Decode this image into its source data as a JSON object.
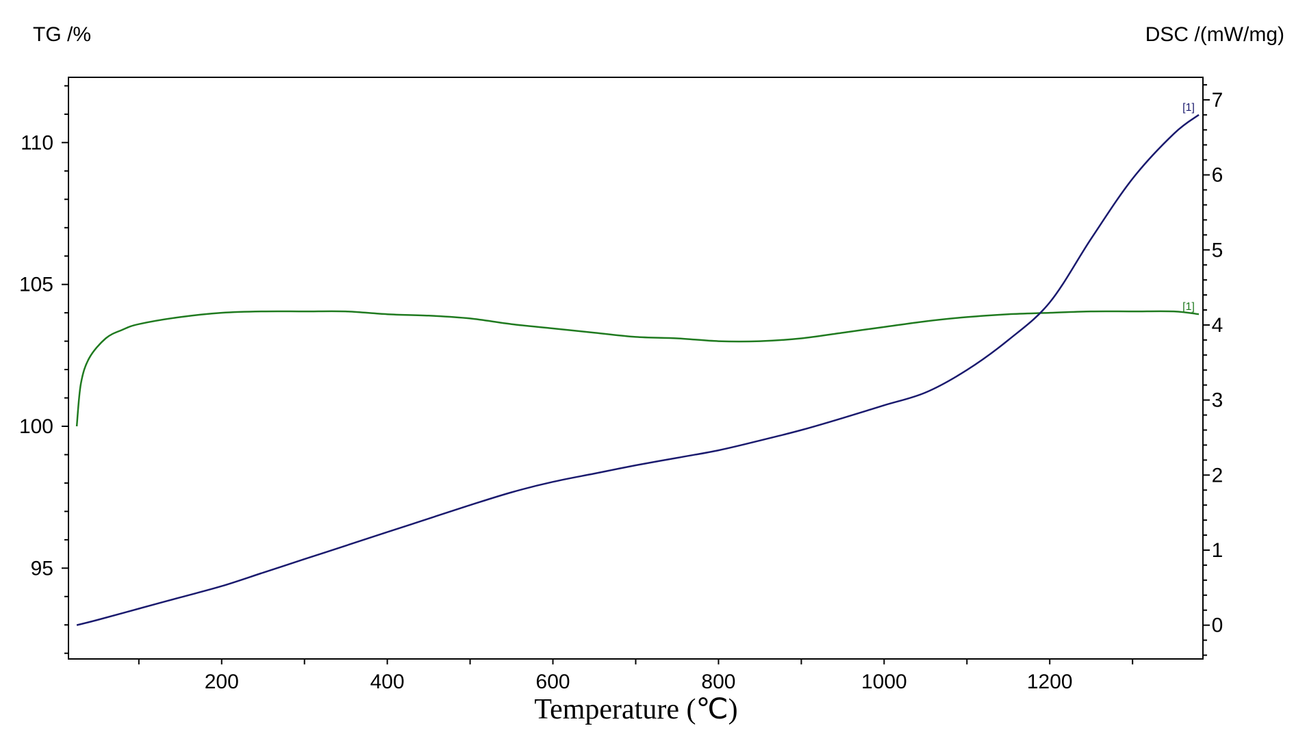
{
  "chart_data": {
    "type": "line",
    "xlabel": "Temperature (℃)",
    "ylabel_left": "TG /%",
    "ylabel_right": "DSC /(mW/mg)",
    "xlim": [
      15,
      1385
    ],
    "x_ticks": [
      200,
      400,
      600,
      800,
      1000,
      1200
    ],
    "ylim_left": [
      91.8,
      112.3
    ],
    "y_ticks_left": [
      95,
      100,
      105,
      110
    ],
    "ylim_right": [
      -0.45,
      7.3
    ],
    "y_ticks_right": [
      0,
      1,
      2,
      3,
      4,
      5,
      6,
      7
    ],
    "grid": false,
    "series": [
      {
        "name": "[1]",
        "axis": "left",
        "color": "#1f7a1f",
        "x": [
          25,
          30,
          40,
          60,
          80,
          100,
          150,
          200,
          250,
          300,
          350,
          400,
          450,
          500,
          550,
          600,
          650,
          700,
          750,
          800,
          850,
          900,
          950,
          1000,
          1050,
          1100,
          1150,
          1200,
          1250,
          1300,
          1350,
          1380
        ],
        "y": [
          100.0,
          101.5,
          102.4,
          103.1,
          103.4,
          103.6,
          103.85,
          104.0,
          104.05,
          104.05,
          104.05,
          103.95,
          103.9,
          103.8,
          103.6,
          103.45,
          103.3,
          103.15,
          103.1,
          103.0,
          103.0,
          103.1,
          103.3,
          103.5,
          103.7,
          103.85,
          103.95,
          104.0,
          104.05,
          104.05,
          104.05,
          103.95
        ]
      },
      {
        "name": "[1]",
        "axis": "right",
        "color": "#1a1a6e",
        "x": [
          25,
          50,
          100,
          150,
          200,
          250,
          300,
          350,
          400,
          450,
          500,
          550,
          600,
          650,
          700,
          750,
          800,
          850,
          900,
          950,
          1000,
          1050,
          1100,
          1150,
          1200,
          1250,
          1300,
          1350,
          1380
        ],
        "y": [
          0.0,
          0.07,
          0.22,
          0.37,
          0.52,
          0.7,
          0.88,
          1.06,
          1.24,
          1.42,
          1.6,
          1.77,
          1.91,
          2.02,
          2.13,
          2.23,
          2.33,
          2.46,
          2.6,
          2.76,
          2.93,
          3.1,
          3.4,
          3.8,
          4.3,
          5.15,
          5.95,
          6.55,
          6.8
        ]
      }
    ]
  }
}
